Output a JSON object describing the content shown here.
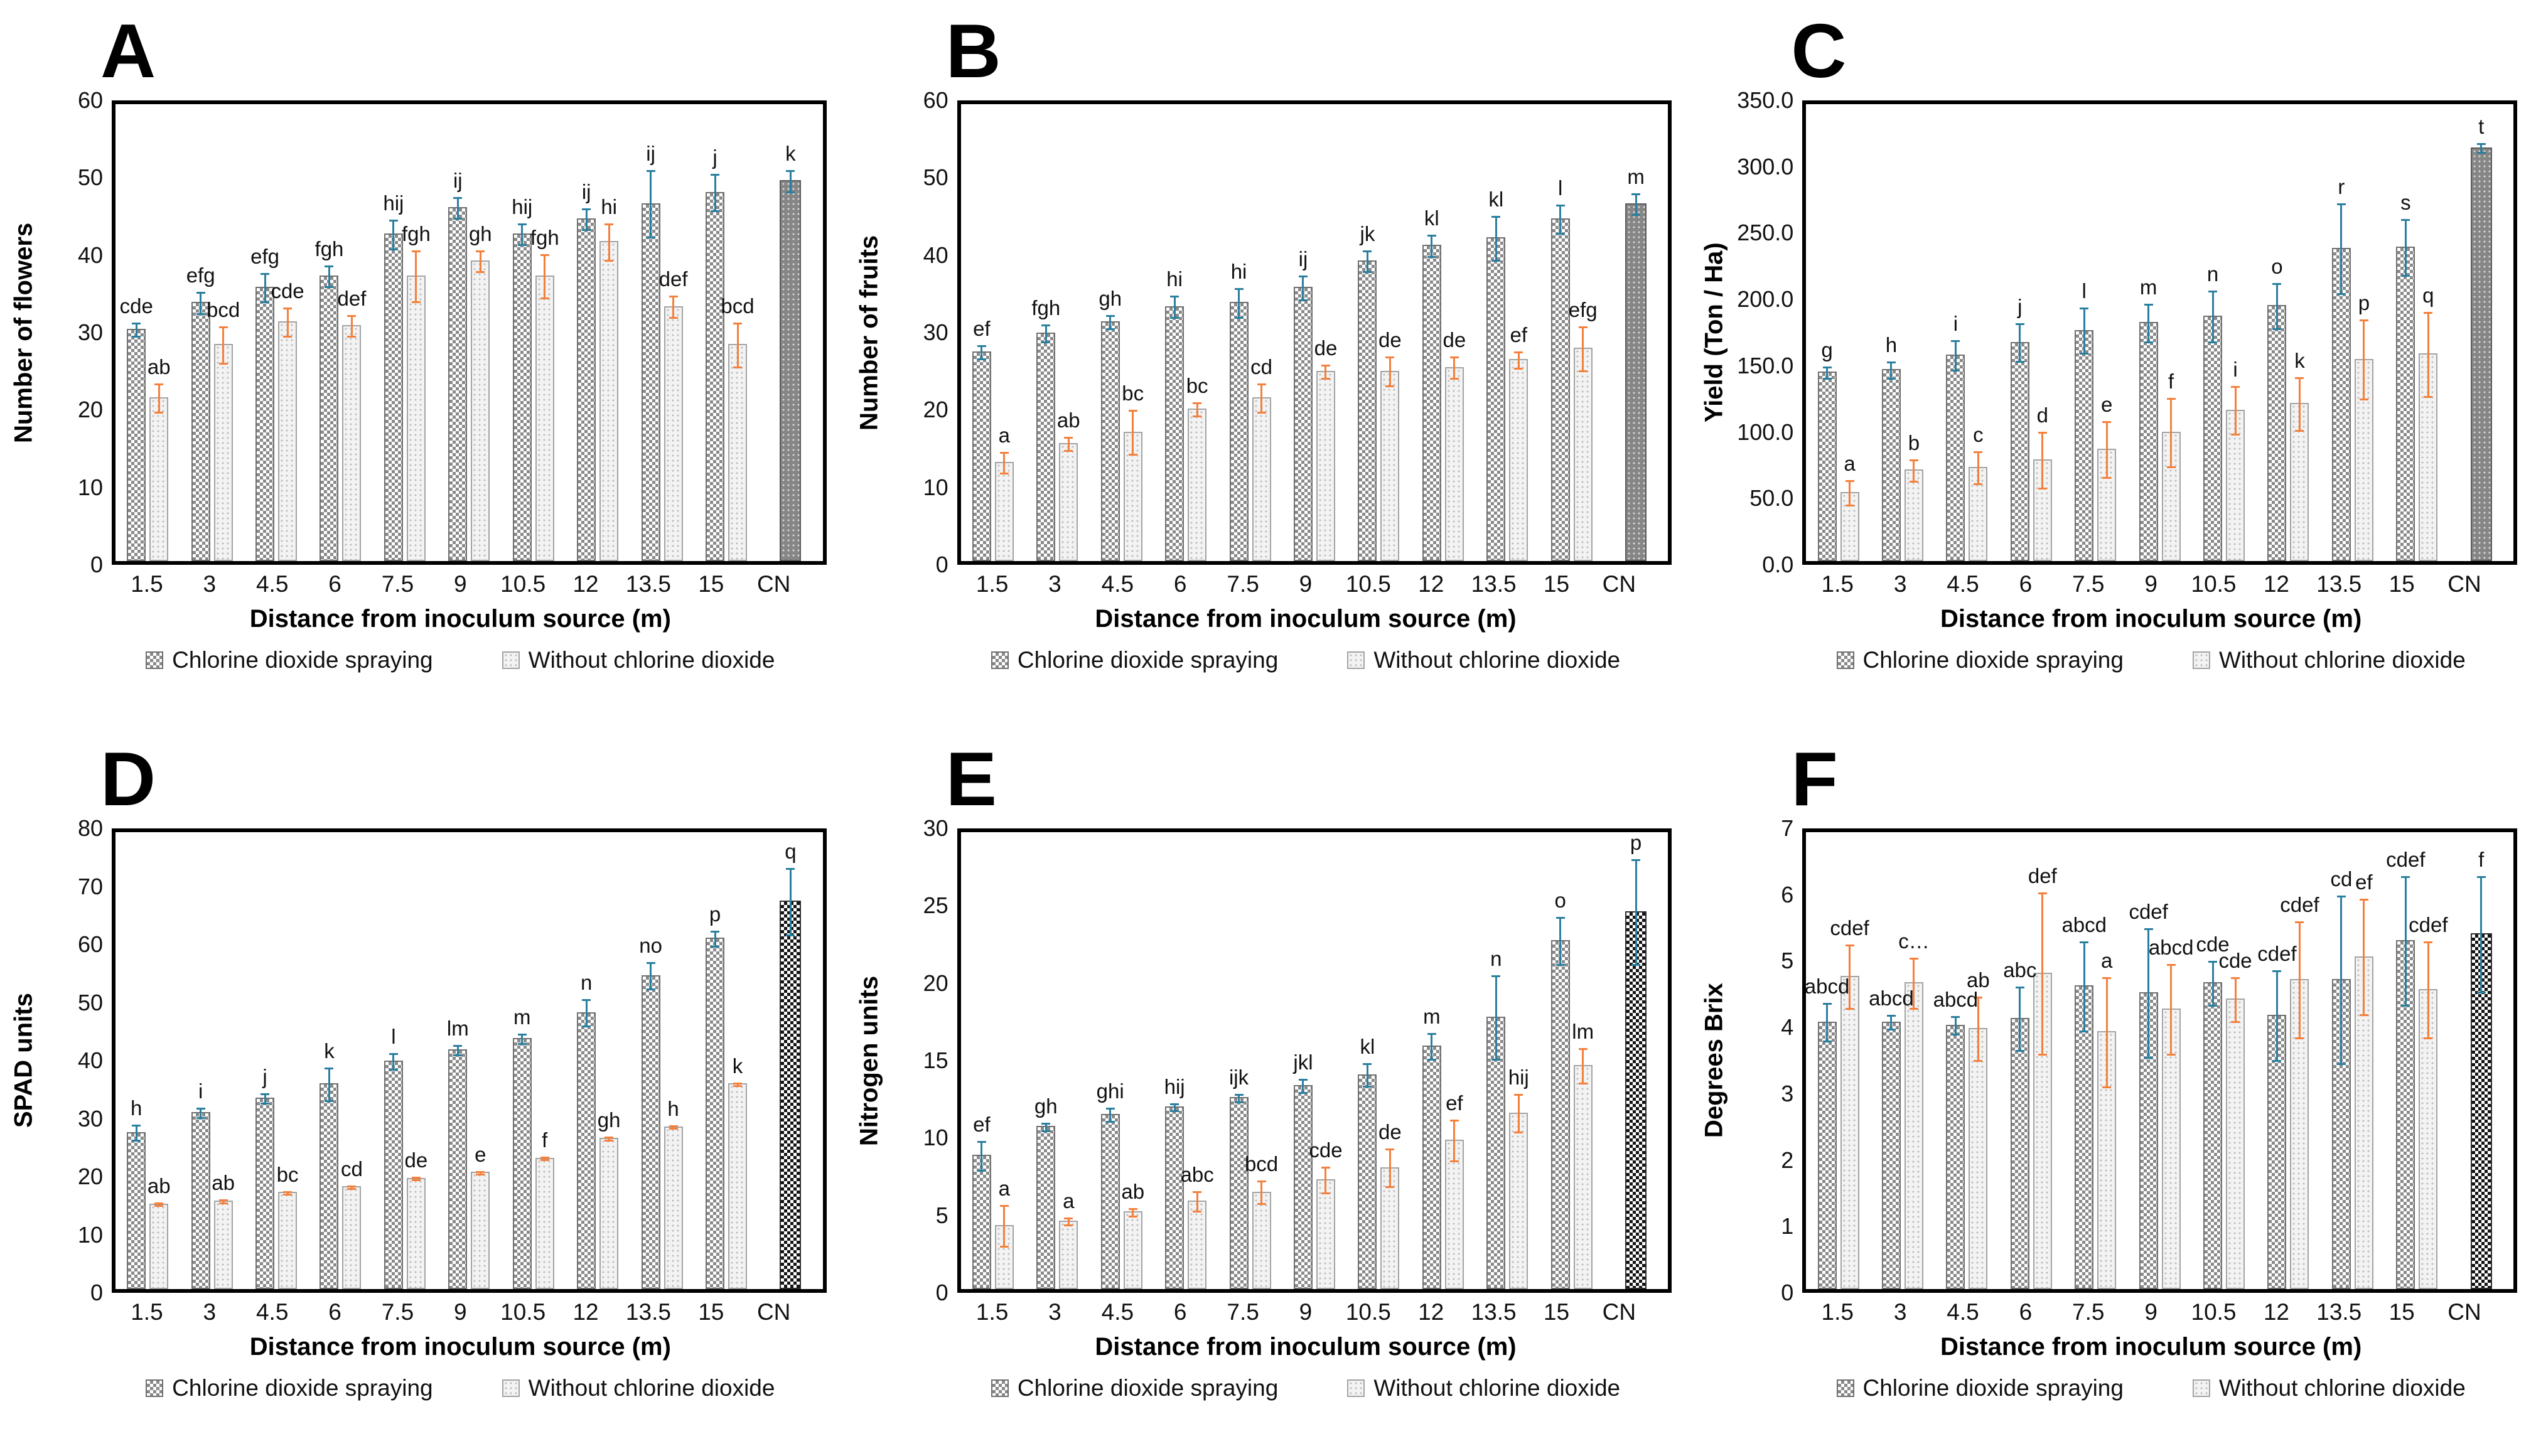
{
  "figure": {
    "legend": [
      "Chlorine dioxide spraying",
      "Without chlorine dioxide"
    ],
    "colors": {
      "series1_error": "#2a7f9e",
      "series2_error": "#f4803c",
      "series1_fill": "#8a8a8a",
      "series2_fill": "#f3f3f3",
      "control_dots_fill": "#868686",
      "control_checker_fill": "#141414"
    }
  },
  "chart_data": [
    {
      "type": "bar",
      "panel": "A",
      "ylabel": "Number of flowers",
      "xlabel": "Distance from inoculum source (m)",
      "ylim": [
        0,
        60
      ],
      "yticks": [
        "0",
        "10",
        "20",
        "30",
        "40",
        "50",
        "60"
      ],
      "grid": false,
      "legend_position": "bottom",
      "categories": [
        "1.5",
        "3",
        "4.5",
        "6",
        "7.5",
        "9",
        "10.5",
        "12",
        "13.5",
        "15",
        "CN"
      ],
      "series": [
        {
          "name": "Chlorine dioxide spraying",
          "values": [
            30.5,
            34,
            36,
            37.5,
            43,
            46.5,
            43,
            45,
            47,
            48.5
          ],
          "errors": [
            1,
            1.5,
            2,
            1.5,
            2,
            1.5,
            1.5,
            1.5,
            4.5,
            2.5
          ],
          "labels": [
            "cde",
            "efg",
            "efg",
            "fgh",
            "hij",
            "ij",
            "hij",
            "ij",
            "ij",
            "j"
          ]
        },
        {
          "name": "Without chlorine dioxide",
          "values": [
            21.5,
            28.5,
            31.5,
            31,
            37.5,
            39.5,
            37.5,
            42,
            33.5,
            28.5
          ],
          "errors": [
            2,
            2.5,
            2,
            1.5,
            3.5,
            1.5,
            3,
            2.5,
            1.5,
            3
          ],
          "labels": [
            "ab",
            "bcd",
            "cde",
            "def",
            "fgh",
            "gh",
            "fgh",
            "hi",
            "def",
            "bcd"
          ]
        }
      ],
      "control": {
        "category": "CN",
        "value": 50,
        "error": 1.5,
        "label": "k",
        "pattern": "gray-dots"
      }
    },
    {
      "type": "bar",
      "panel": "B",
      "ylabel": "Number of fruits",
      "xlabel": "Distance from inoculum source (m)",
      "ylim": [
        0,
        60
      ],
      "yticks": [
        "0",
        "10",
        "20",
        "30",
        "40",
        "50",
        "60"
      ],
      "grid": false,
      "legend_position": "bottom",
      "categories": [
        "1.5",
        "3",
        "4.5",
        "6",
        "7.5",
        "9",
        "10.5",
        "12",
        "13.5",
        "15",
        "CN"
      ],
      "series": [
        {
          "name": "Chlorine dioxide spraying",
          "values": [
            27.5,
            30,
            31.5,
            33.5,
            34,
            36,
            39.5,
            41.5,
            42.5,
            45
          ],
          "errors": [
            1,
            1.2,
            1,
            1.5,
            2,
            1.7,
            1.5,
            1.5,
            3,
            2
          ],
          "labels": [
            "ef",
            "fgh",
            "gh",
            "hi",
            "hi",
            "ij",
            "jk",
            "kl",
            "kl",
            "l"
          ]
        },
        {
          "name": "Without chlorine dioxide",
          "values": [
            13,
            15.5,
            17,
            20,
            21.5,
            25,
            25,
            25.5,
            26.5,
            28
          ],
          "errors": [
            1.5,
            1,
            3,
            1,
            2,
            1,
            2,
            1.5,
            1.2,
            3
          ],
          "labels": [
            "a",
            "ab",
            "bc",
            "bc",
            "cd",
            "de",
            "de",
            "de",
            "ef",
            "efg"
          ]
        }
      ],
      "control": {
        "category": "CN",
        "value": 47,
        "error": 1.5,
        "label": "m",
        "pattern": "gray-dots"
      }
    },
    {
      "type": "bar",
      "panel": "C",
      "ylabel": "Yield (Ton / Ha)",
      "xlabel": "Distance from inoculum source (m)",
      "ylim": [
        0,
        350
      ],
      "yticks": [
        "0.0",
        "50.0",
        "100.0",
        "150.0",
        "200.0",
        "250.0",
        "300.0",
        "350.0"
      ],
      "grid": false,
      "legend_position": "bottom",
      "categories": [
        "1.5",
        "3",
        "4.5",
        "6",
        "7.5",
        "9",
        "10.5",
        "12",
        "13.5",
        "15",
        "CN"
      ],
      "series": [
        {
          "name": "Chlorine dioxide spraying",
          "values": [
            145,
            147,
            158,
            168,
            177,
            183,
            188,
            196,
            240,
            241
          ],
          "errors": [
            5,
            7,
            12,
            15,
            18,
            15,
            20,
            18,
            35,
            22
          ],
          "labels": [
            "g",
            "h",
            "i",
            "j",
            "l",
            "m",
            "n",
            "o",
            "r",
            "s"
          ]
        },
        {
          "name": "Without chlorine dioxide",
          "values": [
            53,
            70,
            72,
            78,
            86,
            99,
            116,
            121,
            155,
            159
          ],
          "errors": [
            10,
            9,
            13,
            22,
            22,
            27,
            19,
            21,
            31,
            33
          ],
          "labels": [
            "a",
            "b",
            "c",
            "d",
            "e",
            "f",
            "i",
            "k",
            "p",
            "q"
          ]
        }
      ],
      "control": {
        "category": "CN",
        "value": 317,
        "error": 4,
        "label": "t",
        "pattern": "gray-dots"
      }
    },
    {
      "type": "bar",
      "panel": "D",
      "ylabel": "SPAD units",
      "xlabel": "Distance from inoculum source (m)",
      "ylim": [
        0,
        80
      ],
      "yticks": [
        "0",
        "10",
        "20",
        "30",
        "40",
        "50",
        "60",
        "70",
        "80"
      ],
      "grid": false,
      "legend_position": "bottom",
      "categories": [
        "1.5",
        "3",
        "4.5",
        "6",
        "7.5",
        "9",
        "10.5",
        "12",
        "13.5",
        "15",
        "CN"
      ],
      "series": [
        {
          "name": "Chlorine dioxide spraying",
          "values": [
            27.5,
            31,
            33.5,
            36,
            40,
            42,
            44,
            48.5,
            55,
            61.5
          ],
          "errors": [
            1.5,
            1,
            1,
            3,
            1.5,
            1,
            1,
            2.5,
            2.5,
            1.5
          ],
          "labels": [
            "h",
            "i",
            "j",
            "k",
            "l",
            "lm",
            "m",
            "n",
            "no",
            "p"
          ]
        },
        {
          "name": "Without chlorine dioxide",
          "values": [
            15,
            15.5,
            17,
            18,
            19.5,
            20.5,
            23,
            26.5,
            28.5,
            36
          ],
          "errors": [
            0.4,
            0.4,
            0.4,
            0.4,
            0.4,
            0.4,
            0.4,
            0.4,
            0.4,
            0.4
          ],
          "labels": [
            "ab",
            "ab",
            "bc",
            "cd",
            "de",
            "e",
            "f",
            "gh",
            "h",
            "k"
          ]
        }
      ],
      "control": {
        "category": "CN",
        "value": 68,
        "error": 6,
        "label": "q",
        "pattern": "checkerboard"
      }
    },
    {
      "type": "bar",
      "panel": "E",
      "ylabel": "Nitrogen units",
      "xlabel": "Distance from inoculum source (m)",
      "ylim": [
        0,
        30
      ],
      "yticks": [
        "0",
        "5",
        "10",
        "15",
        "20",
        "25",
        "30"
      ],
      "grid": false,
      "legend_position": "bottom",
      "categories": [
        "1.5",
        "3",
        "4.5",
        "6",
        "7.5",
        "9",
        "10.5",
        "12",
        "13.5",
        "15",
        "CN"
      ],
      "series": [
        {
          "name": "Chlorine dioxide spraying",
          "values": [
            8.8,
            10.7,
            11.5,
            12,
            12.6,
            13.4,
            14.1,
            16,
            17.9,
            22.9
          ],
          "errors": [
            1,
            0.3,
            0.5,
            0.3,
            0.3,
            0.5,
            0.8,
            0.9,
            2.8,
            1.6
          ],
          "labels": [
            "ef",
            "gh",
            "ghi",
            "hij",
            "ijk",
            "jkl",
            "kl",
            "m",
            "n",
            "o"
          ]
        },
        {
          "name": "Without chlorine dioxide",
          "values": [
            4.2,
            4.5,
            5.1,
            5.8,
            6.4,
            7.2,
            8,
            9.8,
            11.6,
            14.7
          ],
          "errors": [
            1.4,
            0.3,
            0.3,
            0.7,
            0.8,
            0.9,
            1.3,
            1.4,
            1.3,
            1.2
          ],
          "labels": [
            "a",
            "a",
            "ab",
            "abc",
            "bcd",
            "cde",
            "de",
            "ef",
            "hij",
            "lm"
          ]
        }
      ],
      "control": {
        "category": "CN",
        "value": 24.8,
        "error": 3.5,
        "label": "p",
        "pattern": "checkerboard"
      }
    },
    {
      "type": "bar",
      "panel": "F",
      "ylabel": "Degrees Brix",
      "xlabel": "Distance from inoculum source (m)",
      "ylim": [
        0,
        7
      ],
      "yticks": [
        "0",
        "1",
        "2",
        "3",
        "4",
        "5",
        "6",
        "7"
      ],
      "grid": false,
      "legend_position": "bottom",
      "categories": [
        "1.5",
        "3",
        "4.5",
        "6",
        "7.5",
        "9",
        "10.5",
        "12",
        "13.5",
        "15",
        "CN"
      ],
      "series": [
        {
          "name": "Chlorine dioxide spraying",
          "values": [
            4.1,
            4.1,
            4.05,
            4.15,
            4.65,
            4.55,
            4.7,
            4.2,
            4.75,
            5.35
          ],
          "errors": [
            0.3,
            0.12,
            0.15,
            0.5,
            0.7,
            1.0,
            0.35,
            0.7,
            1.3,
            1.0
          ],
          "labels": [
            "abcd",
            "abcd",
            "abcd",
            "abc",
            "abcd",
            "cdef",
            "cde",
            "cdef",
            "cd",
            "cdef"
          ]
        },
        {
          "name": "Without chlorine dioxide",
          "values": [
            4.8,
            4.7,
            4.0,
            4.85,
            3.95,
            4.3,
            4.45,
            4.75,
            5.1,
            4.6
          ],
          "errors": [
            0.5,
            0.4,
            0.5,
            1.25,
            0.85,
            0.7,
            0.35,
            0.9,
            0.9,
            0.75
          ],
          "labels": [
            "cdef",
            "c…",
            "ab",
            "def",
            "a",
            "abcd",
            "cde",
            "cdef",
            "ef",
            "cdef"
          ]
        }
      ],
      "control": {
        "category": "CN",
        "value": 5.45,
        "error": 0.9,
        "label": "f",
        "pattern": "checkerboard"
      }
    }
  ]
}
